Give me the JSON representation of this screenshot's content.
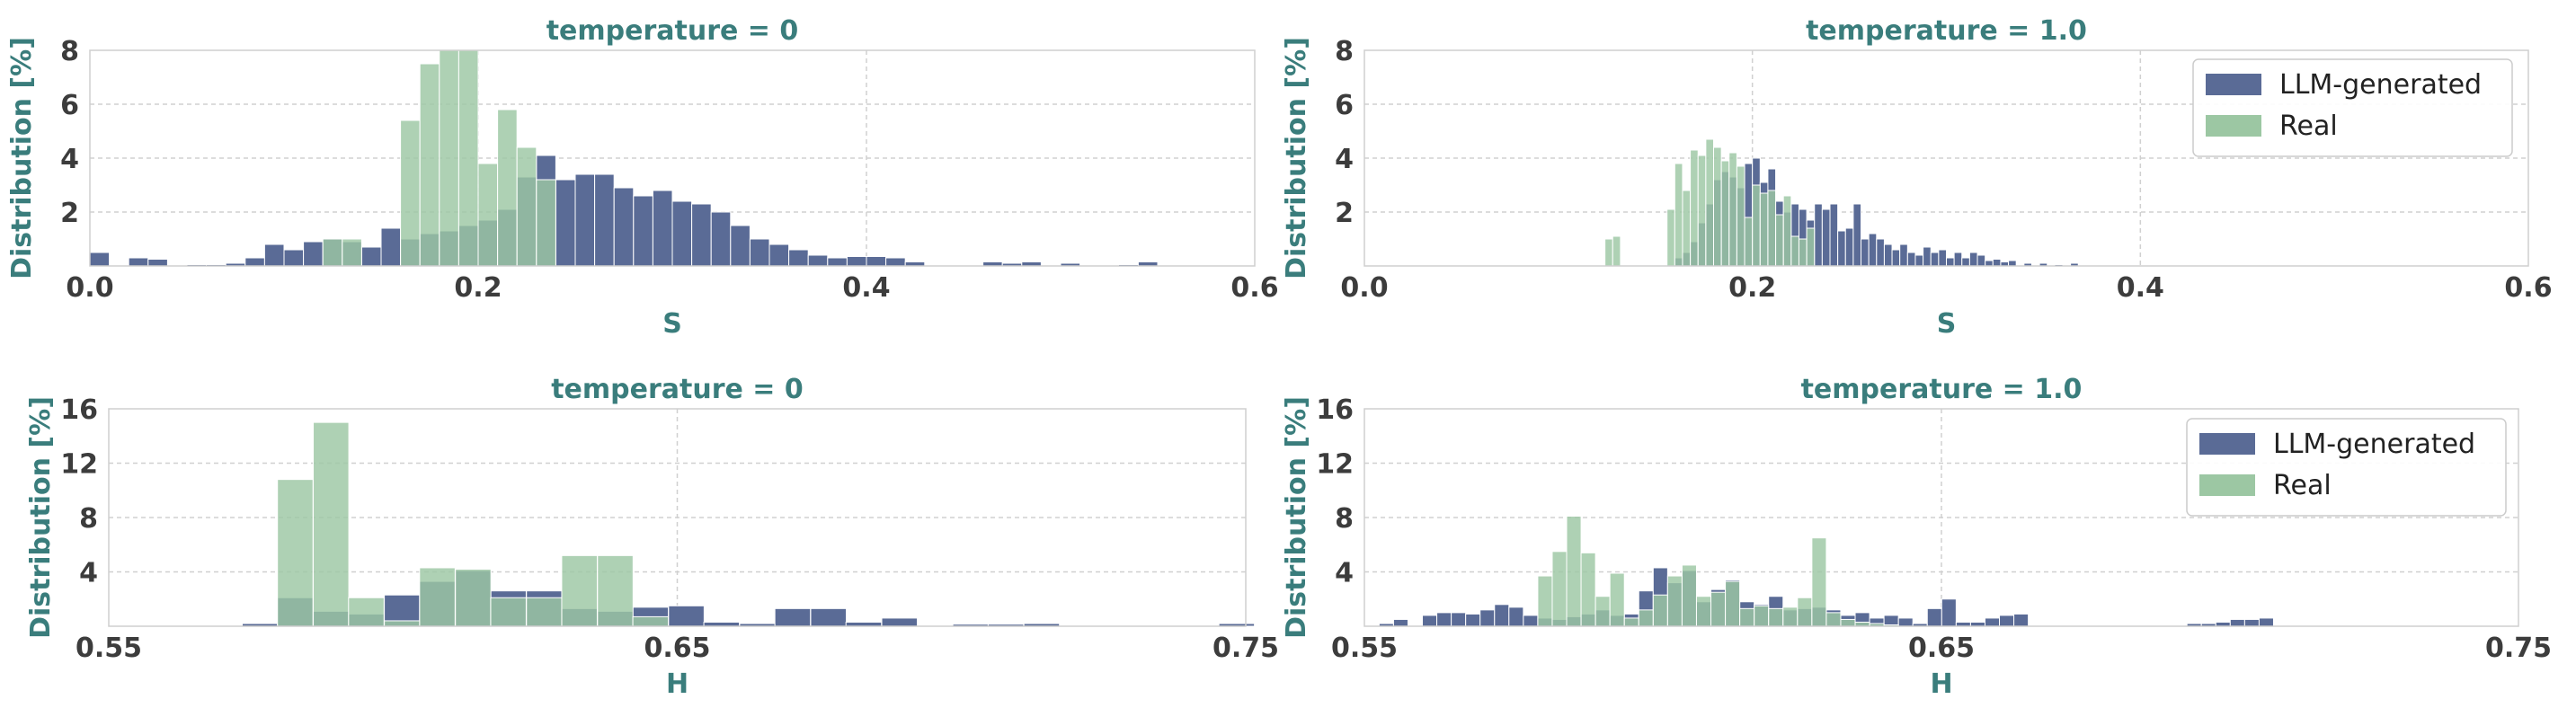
{
  "colors": {
    "llm": "#5a6b96",
    "real": "#9cc7a3",
    "title": "#3a7d7c",
    "grid": "#d0d0d0",
    "frame": "#cfcfcf"
  },
  "legend": {
    "labels": [
      "LLM-generated",
      "Real"
    ]
  },
  "chart_data": [
    {
      "type": "bar",
      "title": "temperature = 0",
      "xlabel": "S",
      "ylabel": "Distribution [%]",
      "xlim": [
        0.0,
        0.6
      ],
      "ylim": [
        0,
        8
      ],
      "xticks": [
        "0.0",
        "0.2",
        "0.4",
        "0.6"
      ],
      "yticks": [
        "2",
        "4",
        "6",
        "8"
      ],
      "legend": false,
      "series": [
        {
          "name": "LLM-generated",
          "bin_width": 0.01,
          "x": [
            0.005,
            0.025,
            0.035,
            0.055,
            0.065,
            0.075,
            0.085,
            0.095,
            0.105,
            0.115,
            0.125,
            0.135,
            0.145,
            0.155,
            0.165,
            0.175,
            0.185,
            0.195,
            0.205,
            0.215,
            0.225,
            0.235,
            0.245,
            0.255,
            0.265,
            0.275,
            0.285,
            0.295,
            0.305,
            0.315,
            0.325,
            0.335,
            0.345,
            0.355,
            0.365,
            0.375,
            0.385,
            0.395,
            0.405,
            0.415,
            0.425,
            0.465,
            0.475,
            0.485,
            0.505,
            0.535,
            0.545
          ],
          "values": [
            0.5,
            0.3,
            0.25,
            0.05,
            0.05,
            0.1,
            0.3,
            0.8,
            0.6,
            0.9,
            1.0,
            0.9,
            0.7,
            1.4,
            1.0,
            1.2,
            1.3,
            1.5,
            1.7,
            2.1,
            3.3,
            4.1,
            3.2,
            3.4,
            3.4,
            2.9,
            2.6,
            2.8,
            2.4,
            2.3,
            2.0,
            1.5,
            1.0,
            0.8,
            0.6,
            0.4,
            0.3,
            0.35,
            0.35,
            0.3,
            0.15,
            0.15,
            0.1,
            0.15,
            0.1,
            0.05,
            0.15
          ]
        },
        {
          "name": "Real",
          "bin_width": 0.01,
          "x": [
            0.125,
            0.135,
            0.165,
            0.175,
            0.185,
            0.195,
            0.205,
            0.215,
            0.225,
            0.235
          ],
          "values": [
            1.0,
            1.0,
            5.4,
            7.5,
            8.0,
            8.0,
            3.8,
            5.8,
            4.4,
            3.2
          ]
        }
      ]
    },
    {
      "type": "bar",
      "title": "temperature = 1.0",
      "xlabel": "S",
      "ylabel": "Distribution [%]",
      "xlim": [
        0.0,
        0.6
      ],
      "ylim": [
        0,
        8
      ],
      "xticks": [
        "0.0",
        "0.2",
        "0.4",
        "0.6"
      ],
      "yticks": [
        "2",
        "4",
        "6",
        "8"
      ],
      "legend": true,
      "series": [
        {
          "name": "LLM-generated",
          "bin_width": 0.004,
          "x": [
            0.162,
            0.166,
            0.17,
            0.174,
            0.178,
            0.182,
            0.186,
            0.19,
            0.194,
            0.198,
            0.202,
            0.206,
            0.21,
            0.214,
            0.218,
            0.222,
            0.226,
            0.23,
            0.234,
            0.238,
            0.242,
            0.246,
            0.25,
            0.254,
            0.258,
            0.262,
            0.266,
            0.27,
            0.274,
            0.278,
            0.282,
            0.286,
            0.29,
            0.294,
            0.298,
            0.302,
            0.306,
            0.31,
            0.314,
            0.318,
            0.322,
            0.326,
            0.33,
            0.334,
            0.342,
            0.35,
            0.358,
            0.366
          ],
          "values": [
            0.3,
            0.5,
            0.9,
            1.6,
            2.3,
            3.2,
            3.5,
            3.3,
            2.9,
            3.8,
            4.0,
            3.1,
            3.6,
            2.4,
            2.0,
            2.3,
            2.1,
            1.7,
            2.3,
            2.1,
            2.3,
            1.3,
            1.4,
            2.3,
            1.0,
            1.2,
            1.0,
            0.8,
            0.6,
            0.8,
            0.5,
            0.4,
            0.7,
            0.5,
            0.6,
            0.3,
            0.5,
            0.3,
            0.5,
            0.4,
            0.2,
            0.25,
            0.15,
            0.2,
            0.1,
            0.1,
            0.05,
            0.1
          ]
        },
        {
          "name": "Real",
          "bin_width": 0.004,
          "x": [
            0.126,
            0.13,
            0.158,
            0.162,
            0.166,
            0.17,
            0.174,
            0.178,
            0.182,
            0.186,
            0.19,
            0.194,
            0.198,
            0.202,
            0.206,
            0.21,
            0.214,
            0.218,
            0.222,
            0.226,
            0.23
          ],
          "values": [
            1.0,
            1.1,
            2.1,
            3.8,
            2.8,
            4.3,
            4.1,
            4.7,
            4.4,
            3.9,
            4.2,
            3.7,
            1.8,
            3.0,
            2.7,
            2.8,
            1.9,
            2.6,
            1.1,
            1.0,
            1.4
          ]
        }
      ]
    },
    {
      "type": "bar",
      "title": "temperature = 0",
      "xlabel": "H",
      "ylabel": "Distribution [%]",
      "xlim": [
        0.55,
        0.75
      ],
      "ylim": [
        0,
        16
      ],
      "xticks": [
        "0.55",
        "0.65",
        "0.75"
      ],
      "yticks": [
        "4",
        "8",
        "12",
        "16"
      ],
      "legend": false,
      "series": [
        {
          "name": "LLM-generated",
          "bin_width": 0.00625,
          "x": [
            0.5766,
            0.5828,
            0.5891,
            0.5953,
            0.6016,
            0.6078,
            0.6141,
            0.6203,
            0.6266,
            0.6328,
            0.6391,
            0.6453,
            0.6516,
            0.6578,
            0.6641,
            0.6703,
            0.6766,
            0.6828,
            0.6891,
            0.7016,
            0.7078,
            0.7141,
            0.7484
          ],
          "values": [
            0.2,
            2.1,
            1.1,
            0.9,
            2.3,
            3.3,
            4.1,
            2.6,
            2.6,
            1.3,
            1.1,
            1.4,
            1.5,
            0.3,
            0.2,
            1.3,
            1.3,
            0.3,
            0.6,
            0.15,
            0.15,
            0.2,
            0.2
          ]
        },
        {
          "name": "Real",
          "bin_width": 0.00625,
          "x": [
            0.5828,
            0.5891,
            0.5953,
            0.6016,
            0.6078,
            0.6141,
            0.6203,
            0.6266,
            0.6328,
            0.6391,
            0.6453
          ],
          "values": [
            10.8,
            15.0,
            2.1,
            0.4,
            4.3,
            4.2,
            2.1,
            2.1,
            5.2,
            5.2,
            0.7
          ]
        }
      ]
    },
    {
      "type": "bar",
      "title": "temperature = 1.0",
      "xlabel": "H",
      "ylabel": "Distribution [%]",
      "xlim": [
        0.55,
        0.75
      ],
      "ylim": [
        0,
        16
      ],
      "xticks": [
        "0.55",
        "0.65",
        "0.75"
      ],
      "yticks": [
        "4",
        "8",
        "12",
        "16"
      ],
      "legend": true,
      "series": [
        {
          "name": "LLM-generated",
          "bin_width": 0.0025,
          "x": [
            0.5538,
            0.5563,
            0.5613,
            0.5638,
            0.5663,
            0.5688,
            0.5713,
            0.5738,
            0.5763,
            0.5788,
            0.5813,
            0.5838,
            0.5863,
            0.5888,
            0.5913,
            0.5938,
            0.5963,
            0.5988,
            0.6013,
            0.6038,
            0.6063,
            0.6088,
            0.6113,
            0.6138,
            0.6163,
            0.6188,
            0.6213,
            0.6238,
            0.6263,
            0.6288,
            0.6313,
            0.6338,
            0.6363,
            0.6388,
            0.6413,
            0.6438,
            0.6463,
            0.6488,
            0.6513,
            0.6538,
            0.6563,
            0.6588,
            0.6613,
            0.6638,
            0.6938,
            0.6963,
            0.6988,
            0.7013,
            0.7038,
            0.7063
          ],
          "values": [
            0.2,
            0.5,
            0.8,
            1.0,
            1.0,
            0.9,
            1.2,
            1.6,
            1.4,
            0.8,
            0.6,
            0.5,
            0.7,
            0.9,
            1.2,
            0.8,
            0.9,
            2.6,
            4.3,
            3.2,
            4.1,
            1.8,
            2.7,
            3.4,
            1.8,
            1.6,
            2.2,
            1.2,
            1.3,
            1.4,
            1.2,
            0.8,
            1.0,
            0.6,
            0.8,
            0.6,
            0.2,
            1.3,
            2.0,
            0.3,
            0.3,
            0.6,
            0.8,
            0.9,
            0.2,
            0.2,
            0.3,
            0.5,
            0.5,
            0.6
          ]
        },
        {
          "name": "Real",
          "bin_width": 0.0025,
          "x": [
            0.5813,
            0.5838,
            0.5863,
            0.5888,
            0.5913,
            0.5938,
            0.5963,
            0.5988,
            0.6013,
            0.6038,
            0.6063,
            0.6088,
            0.6113,
            0.6138,
            0.6163,
            0.6188,
            0.6213,
            0.6238,
            0.6263,
            0.6288,
            0.6313,
            0.6338,
            0.6363,
            0.6388,
            0.6413
          ],
          "values": [
            3.7,
            5.5,
            8.1,
            5.4,
            2.2,
            3.9,
            0.6,
            1.2,
            2.3,
            3.7,
            4.5,
            2.2,
            2.5,
            3.3,
            1.3,
            1.5,
            1.3,
            1.4,
            2.1,
            6.5,
            1.0,
            0.5,
            0.3,
            0.2,
            0.1
          ]
        }
      ]
    }
  ]
}
